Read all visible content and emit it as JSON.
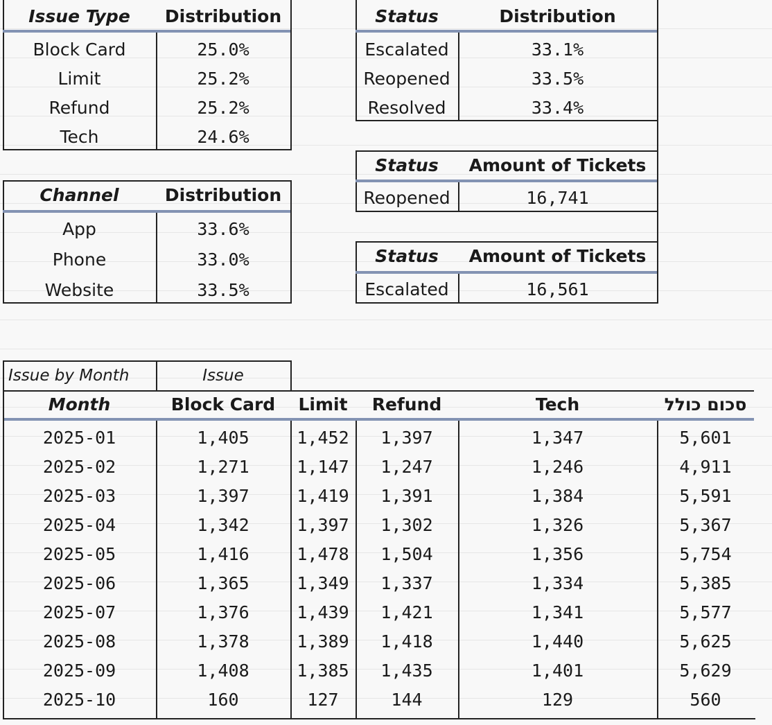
{
  "issue_type_table": {
    "header_col1": "Issue Type",
    "header_col2": "Distribution",
    "rows": [
      {
        "label": "Block Card",
        "value": "25.0%"
      },
      {
        "label": "Limit",
        "value": "25.2%"
      },
      {
        "label": "Refund",
        "value": "25.2%"
      },
      {
        "label": "Tech",
        "value": "24.6%"
      }
    ]
  },
  "status_table": {
    "header_col1": "Status",
    "header_col2": "Distribution",
    "rows": [
      {
        "label": "Escalated",
        "value": "33.1%"
      },
      {
        "label": "Reopened",
        "value": "33.5%"
      },
      {
        "label": "Resolved",
        "value": "33.4%"
      }
    ]
  },
  "channel_table": {
    "header_col1": "Channel",
    "header_col2": "Distribution",
    "rows": [
      {
        "label": "App",
        "value": "33.6%"
      },
      {
        "label": "Phone",
        "value": "33.0%"
      },
      {
        "label": "Website",
        "value": "33.5%"
      }
    ]
  },
  "reopened_table": {
    "header_col1": "Status",
    "header_col2": "Amount of Tickets",
    "label": "Reopened",
    "value": "16,741"
  },
  "escalated_table": {
    "header_col1": "Status",
    "header_col2": "Amount of Tickets",
    "label": "Escalated",
    "value": "16,561"
  },
  "pivot": {
    "title": "Issue by Month",
    "col_group": "Issue",
    "headers": [
      "Month",
      "Block Card",
      "Limit",
      "Refund",
      "Tech",
      "סכום כולל"
    ],
    "rows": [
      [
        "2025-01",
        "1,405",
        "1,452",
        "1,397",
        "1,347",
        "5,601"
      ],
      [
        "2025-02",
        "1,271",
        "1,147",
        "1,247",
        "1,246",
        "4,911"
      ],
      [
        "2025-03",
        "1,397",
        "1,419",
        "1,391",
        "1,384",
        "5,591"
      ],
      [
        "2025-04",
        "1,342",
        "1,397",
        "1,302",
        "1,326",
        "5,367"
      ],
      [
        "2025-05",
        "1,416",
        "1,478",
        "1,504",
        "1,356",
        "5,754"
      ],
      [
        "2025-06",
        "1,365",
        "1,349",
        "1,337",
        "1,334",
        "5,385"
      ],
      [
        "2025-07",
        "1,376",
        "1,439",
        "1,421",
        "1,341",
        "5,577"
      ],
      [
        "2025-08",
        "1,378",
        "1,389",
        "1,418",
        "1,440",
        "5,625"
      ],
      [
        "2025-09",
        "1,408",
        "1,385",
        "1,435",
        "1,401",
        "5,629"
      ],
      [
        "2025-10",
        "160",
        "127",
        "144",
        "129",
        "560"
      ]
    ]
  }
}
